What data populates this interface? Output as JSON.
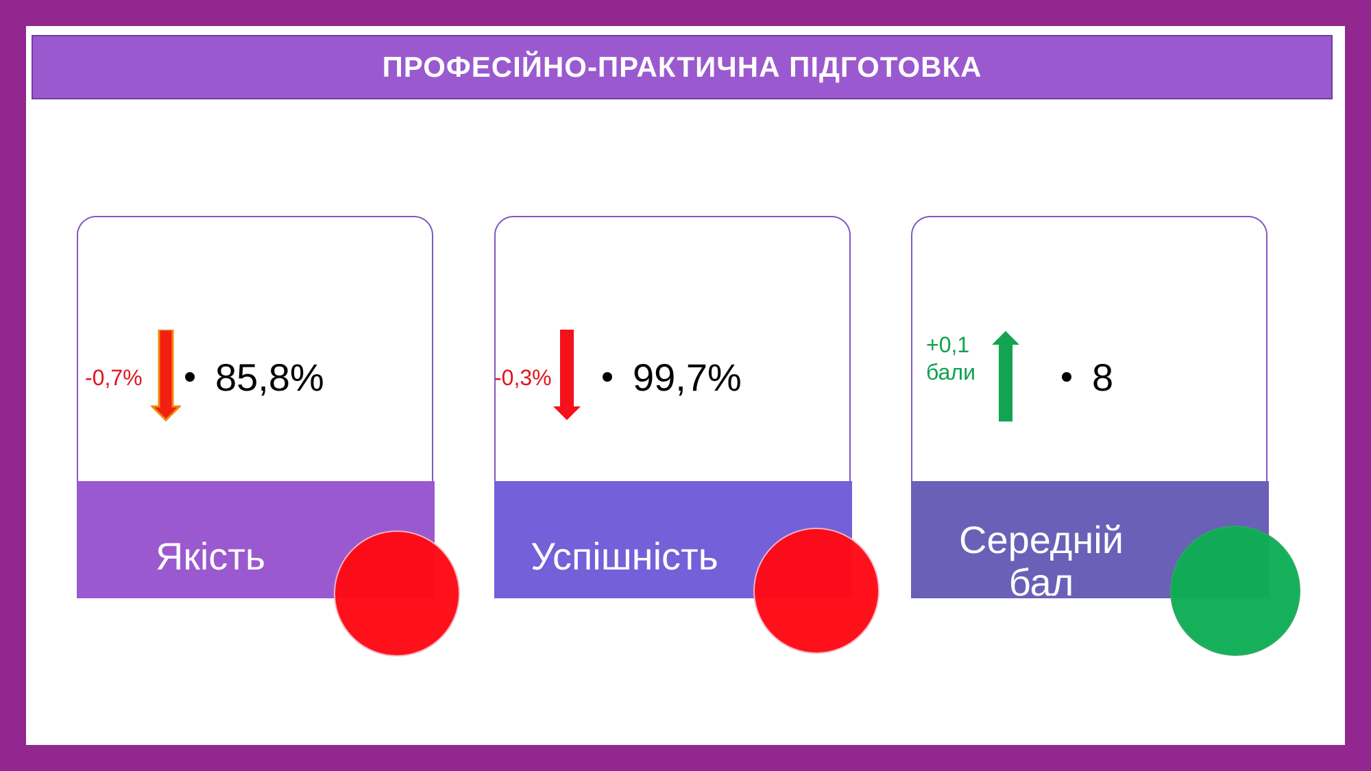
{
  "title": "ПРОФЕСІЙНО-ПРАКТИЧНА ПІДГОТОВКА",
  "cards": [
    {
      "label": "Якість",
      "value": "85,8%",
      "change": "-0,7%",
      "change_line2": "",
      "direction": "down",
      "label_bg": "#9b59d0",
      "circle_color": "#ff0a14",
      "change_color": "#e0141e"
    },
    {
      "label": "Успішність",
      "value": "99,7%",
      "change": "-0,3%",
      "change_line2": "",
      "direction": "down",
      "label_bg": "#7460d8",
      "circle_color": "#ff0a14",
      "change_color": "#e0141e"
    },
    {
      "label": "Середній",
      "label_line2": "бал",
      "value": "8",
      "change": "+0,1",
      "change_line2": "бали",
      "direction": "up",
      "label_bg": "#6a60b8",
      "circle_color": "#0fae55",
      "change_color": "#0fa04d"
    }
  ]
}
